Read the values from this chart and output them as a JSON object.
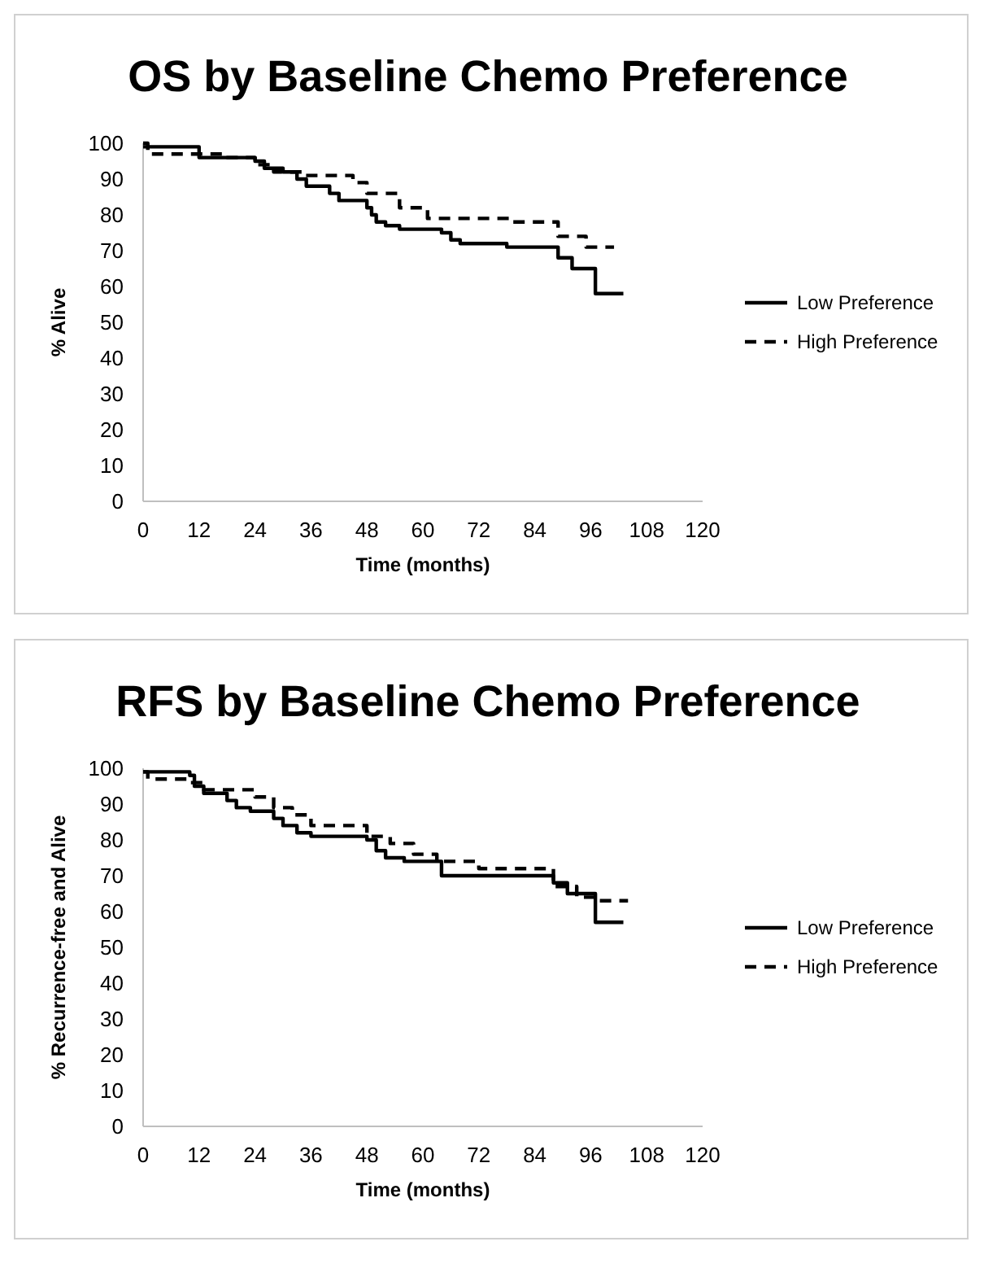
{
  "chart_data": [
    {
      "type": "step",
      "title": "OS by Baseline Chemo Preference",
      "xlabel": "Time (months)",
      "ylabel": "% Alive",
      "xlim": [
        0,
        120
      ],
      "xticks": [
        0,
        12,
        24,
        36,
        48,
        60,
        72,
        84,
        96,
        108,
        120
      ],
      "ylim": [
        0,
        100
      ],
      "yticks": [
        0,
        10,
        20,
        30,
        40,
        50,
        60,
        70,
        80,
        90,
        100
      ],
      "grid": false,
      "legend": "right",
      "series": [
        {
          "name": "Low Preference",
          "color": "#000000",
          "line_style": "solid",
          "x": [
            0,
            12,
            24,
            26,
            30,
            33,
            35,
            40,
            42,
            48,
            49,
            50,
            52,
            55,
            64,
            66,
            68,
            78,
            89,
            92,
            97,
            103
          ],
          "values": [
            99,
            96,
            95,
            93,
            92,
            90,
            88,
            86,
            84,
            82,
            80,
            78,
            77,
            76,
            75,
            73,
            72,
            71,
            68,
            65,
            58,
            58
          ]
        },
        {
          "name": "High Preference",
          "color": "#000000",
          "line_style": "dashed",
          "x": [
            0,
            1,
            12,
            17,
            24,
            28,
            34,
            45,
            48,
            55,
            61,
            79,
            89,
            95,
            101
          ],
          "values": [
            100,
            97,
            97,
            96,
            94,
            92,
            91,
            89,
            86,
            82,
            79,
            78,
            74,
            71,
            71
          ]
        }
      ]
    },
    {
      "type": "step",
      "title": "RFS by Baseline Chemo Preference",
      "xlabel": "Time (months)",
      "ylabel": "% Recurrence-free and Alive",
      "xlim": [
        0,
        120
      ],
      "xticks": [
        0,
        12,
        24,
        36,
        48,
        60,
        72,
        84,
        96,
        108,
        120
      ],
      "ylim": [
        0,
        100
      ],
      "yticks": [
        0,
        10,
        20,
        30,
        40,
        50,
        60,
        70,
        80,
        90,
        100
      ],
      "grid": false,
      "legend": "right",
      "series": [
        {
          "name": "Low Preference",
          "color": "#000000",
          "line_style": "solid",
          "x": [
            0,
            10,
            11,
            13,
            18,
            20,
            23,
            28,
            30,
            33,
            36,
            48,
            50,
            52,
            56,
            64,
            88,
            91,
            97,
            103
          ],
          "values": [
            99,
            98,
            95,
            93,
            91,
            89,
            88,
            86,
            84,
            82,
            81,
            80,
            77,
            75,
            74,
            70,
            68,
            65,
            57,
            57
          ]
        },
        {
          "name": "High Preference",
          "color": "#000000",
          "line_style": "dashed",
          "x": [
            0,
            1,
            10,
            13,
            24,
            28,
            32,
            36,
            48,
            53,
            58,
            63,
            72,
            88,
            93,
            97,
            104
          ],
          "values": [
            99,
            97,
            96,
            94,
            92,
            89,
            87,
            84,
            81,
            79,
            76,
            74,
            72,
            67,
            64,
            63,
            63
          ]
        }
      ]
    }
  ]
}
